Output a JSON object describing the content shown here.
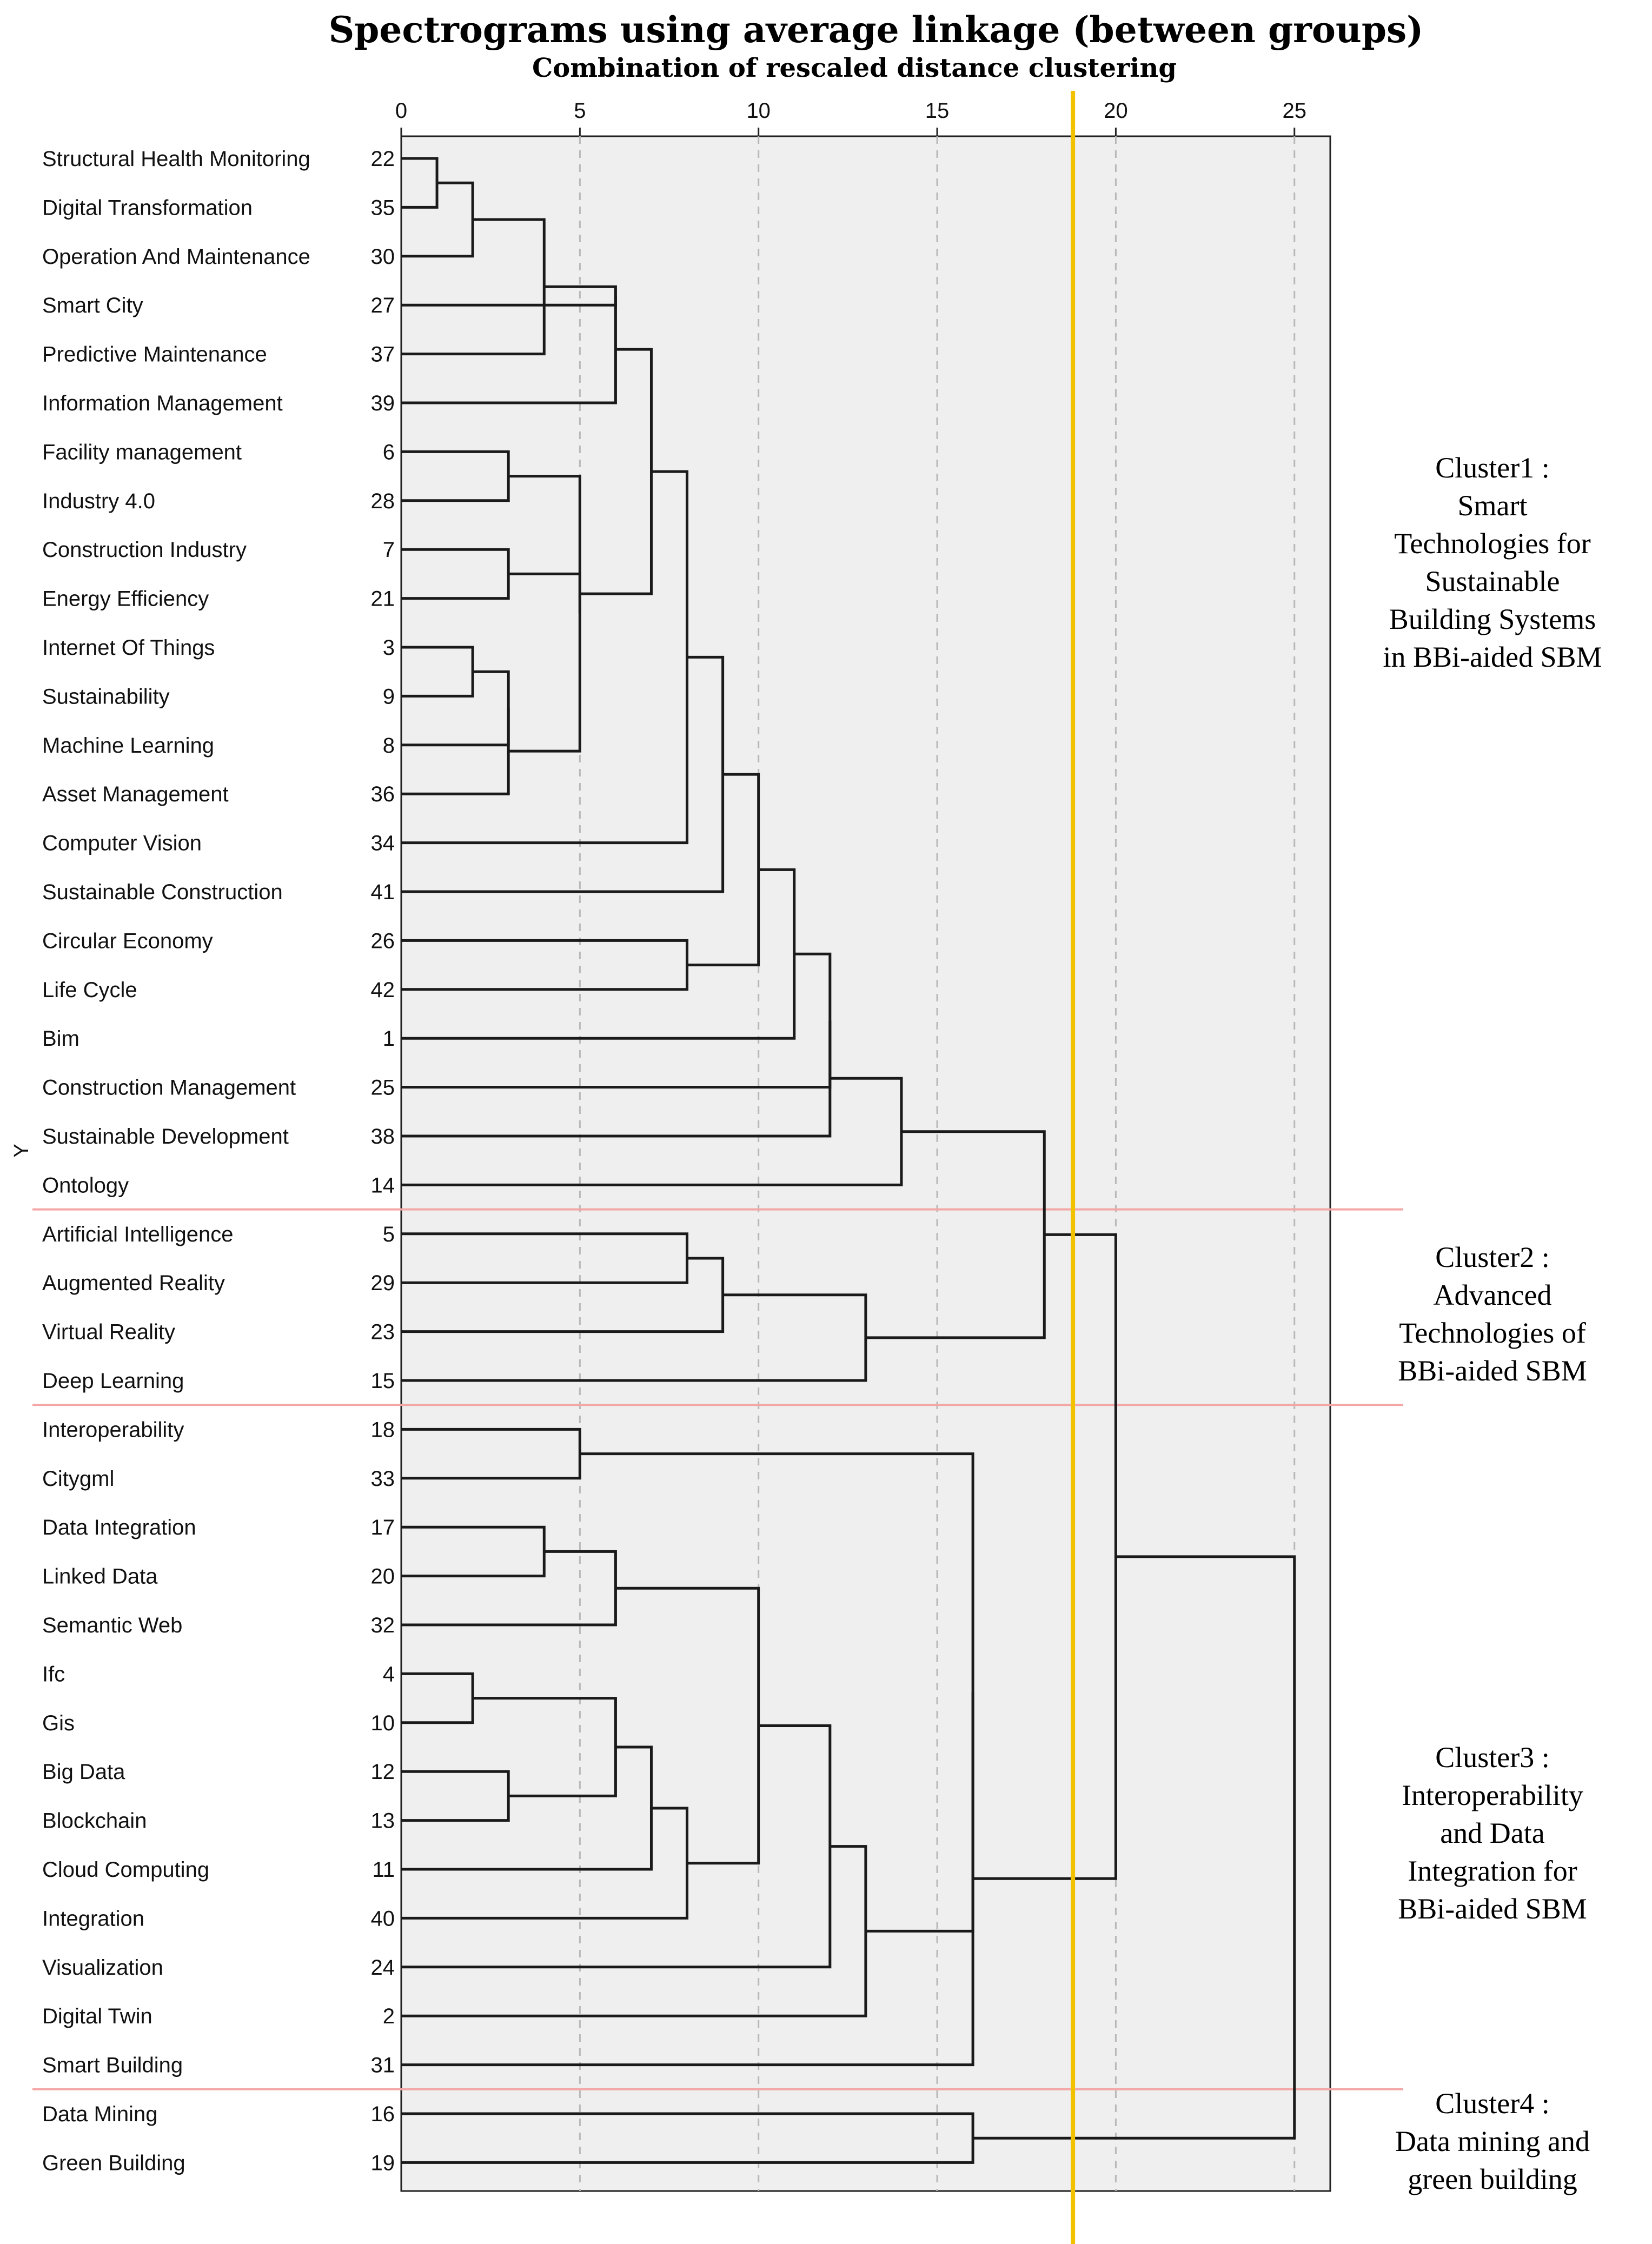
{
  "chart_data": {
    "type": "dendrogram",
    "title": "Spectrograms using average linkage (between groups)",
    "subtitle": "Combination of rescaled distance clustering",
    "ylabel": "Y",
    "xlim": [
      0,
      26
    ],
    "xticks": [
      0,
      5,
      10,
      15,
      20,
      25
    ],
    "grid": "dashed vertical at ticks",
    "cut_line": {
      "x": 18.8,
      "color": "#f2c200"
    },
    "leaves": [
      {
        "label": "Structural Health Monitoring",
        "id": "22"
      },
      {
        "label": "Digital Transformation",
        "id": "35"
      },
      {
        "label": "Operation And Maintenance",
        "id": "30"
      },
      {
        "label": "Smart City",
        "id": "27"
      },
      {
        "label": "Predictive Maintenance",
        "id": "37"
      },
      {
        "label": "Information Management",
        "id": "39"
      },
      {
        "label": "Facility management",
        "id": "6"
      },
      {
        "label": "Industry 4.0",
        "id": "28"
      },
      {
        "label": "Construction Industry",
        "id": "7"
      },
      {
        "label": "Energy Efficiency",
        "id": "21"
      },
      {
        "label": "Internet Of Things",
        "id": "3"
      },
      {
        "label": "Sustainability",
        "id": "9"
      },
      {
        "label": "Machine Learning",
        "id": "8"
      },
      {
        "label": "Asset Management",
        "id": "36"
      },
      {
        "label": "Computer Vision",
        "id": "34"
      },
      {
        "label": "Sustainable Construction",
        "id": "41"
      },
      {
        "label": "Circular Economy",
        "id": "26"
      },
      {
        "label": "Life Cycle",
        "id": "42"
      },
      {
        "label": "Bim",
        "id": "1"
      },
      {
        "label": "Construction Management",
        "id": "25"
      },
      {
        "label": "Sustainable Development",
        "id": "38"
      },
      {
        "label": "Ontology",
        "id": "14"
      },
      {
        "label": "Artificial Intelligence",
        "id": "5"
      },
      {
        "label": "Augmented Reality",
        "id": "29"
      },
      {
        "label": "Virtual Reality",
        "id": "23"
      },
      {
        "label": "Deep Learning",
        "id": "15"
      },
      {
        "label": "Interoperability",
        "id": "18"
      },
      {
        "label": "Citygml",
        "id": "33"
      },
      {
        "label": "Data Integration",
        "id": "17"
      },
      {
        "label": "Linked Data",
        "id": "20"
      },
      {
        "label": "Semantic Web",
        "id": "32"
      },
      {
        "label": "Ifc",
        "id": "4"
      },
      {
        "label": "Gis",
        "id": "10"
      },
      {
        "label": "Big Data",
        "id": "12"
      },
      {
        "label": "Blockchain",
        "id": "13"
      },
      {
        "label": "Cloud Computing",
        "id": "11"
      },
      {
        "label": "Integration",
        "id": "40"
      },
      {
        "label": "Visualization",
        "id": "24"
      },
      {
        "label": "Digital Twin",
        "id": "2"
      },
      {
        "label": "Smart Building",
        "id": "31"
      },
      {
        "label": "Data Mining",
        "id": "16"
      },
      {
        "label": "Green Building",
        "id": "19"
      }
    ],
    "merges": [
      {
        "a": "L0",
        "b": "L1",
        "h": 1
      },
      {
        "a": "M0",
        "b": "L2",
        "h": 2
      },
      {
        "a": "M1",
        "b": "L4",
        "h": 4
      },
      {
        "a": "L3",
        "b": "M2",
        "h": 6
      },
      {
        "a": "M3",
        "b": "L5",
        "h": 6
      },
      {
        "a": "L6",
        "b": "L7",
        "h": 3
      },
      {
        "a": "L8",
        "b": "L9",
        "h": 3
      },
      {
        "a": "L10",
        "b": "L11",
        "h": 2
      },
      {
        "a": "M7",
        "b": "L12",
        "h": 3
      },
      {
        "a": "M8",
        "b": "L13",
        "h": 3
      },
      {
        "a": "M5",
        "b": "M9",
        "h": 5
      },
      {
        "a": "M10",
        "b": "M6",
        "h": 5
      },
      {
        "a": "M4",
        "b": "M11",
        "h": 7
      },
      {
        "a": "M12",
        "b": "L14",
        "h": 8
      },
      {
        "a": "M13",
        "b": "L15",
        "h": 9
      },
      {
        "a": "L16",
        "b": "L17",
        "h": 8
      },
      {
        "a": "M14",
        "b": "M15",
        "h": 10
      },
      {
        "a": "M16",
        "b": "L18",
        "h": 11
      },
      {
        "a": "M17",
        "b": "L19",
        "h": 12
      },
      {
        "a": "M18",
        "b": "L20",
        "h": 12
      },
      {
        "a": "M19",
        "b": "L21",
        "h": 14
      },
      {
        "a": "L22",
        "b": "L23",
        "h": 8
      },
      {
        "a": "M21",
        "b": "L24",
        "h": 9
      },
      {
        "a": "M22",
        "b": "L25",
        "h": 13
      },
      {
        "a": "M20",
        "b": "M23",
        "h": 18
      },
      {
        "a": "L26",
        "b": "L27",
        "h": 5
      },
      {
        "a": "L28",
        "b": "L29",
        "h": 4
      },
      {
        "a": "M26",
        "b": "L30",
        "h": 6
      },
      {
        "a": "L31",
        "b": "L32",
        "h": 2
      },
      {
        "a": "L33",
        "b": "L34",
        "h": 3
      },
      {
        "a": "M28",
        "b": "M29",
        "h": 6
      },
      {
        "a": "M30",
        "b": "L35",
        "h": 7
      },
      {
        "a": "M31",
        "b": "L36",
        "h": 8
      },
      {
        "a": "M27",
        "b": "M32",
        "h": 10
      },
      {
        "a": "M33",
        "b": "L37",
        "h": 12
      },
      {
        "a": "M34",
        "b": "L38",
        "h": 13
      },
      {
        "a": "M25",
        "b": "M35",
        "h": 16
      },
      {
        "a": "M36",
        "b": "L39",
        "h": 16
      },
      {
        "a": "M24",
        "b": "M37",
        "h": 20
      },
      {
        "a": "L40",
        "b": "L41",
        "h": 16
      },
      {
        "a": "M38",
        "b": "M39",
        "h": 25
      }
    ],
    "clusters": [
      {
        "label_lines": [
          "Cluster1 :",
          "Smart",
          "Technologies for",
          "Sustainable",
          "Building Systems",
          "in BBi-aided SBM"
        ],
        "first_leaf": 0,
        "last_leaf": 21
      },
      {
        "label_lines": [
          "Cluster2 :",
          "Advanced",
          "Technologies of",
          "BBi-aided SBM"
        ],
        "first_leaf": 22,
        "last_leaf": 25
      },
      {
        "label_lines": [
          "Cluster3 :",
          "Interoperability",
          "and Data",
          "Integration for",
          "BBi-aided SBM"
        ],
        "first_leaf": 26,
        "last_leaf": 39
      },
      {
        "label_lines": [
          "Cluster4 :",
          "Data mining and",
          "green building"
        ],
        "first_leaf": 40,
        "last_leaf": 41
      }
    ],
    "separator_color": "#f4a6a6"
  }
}
